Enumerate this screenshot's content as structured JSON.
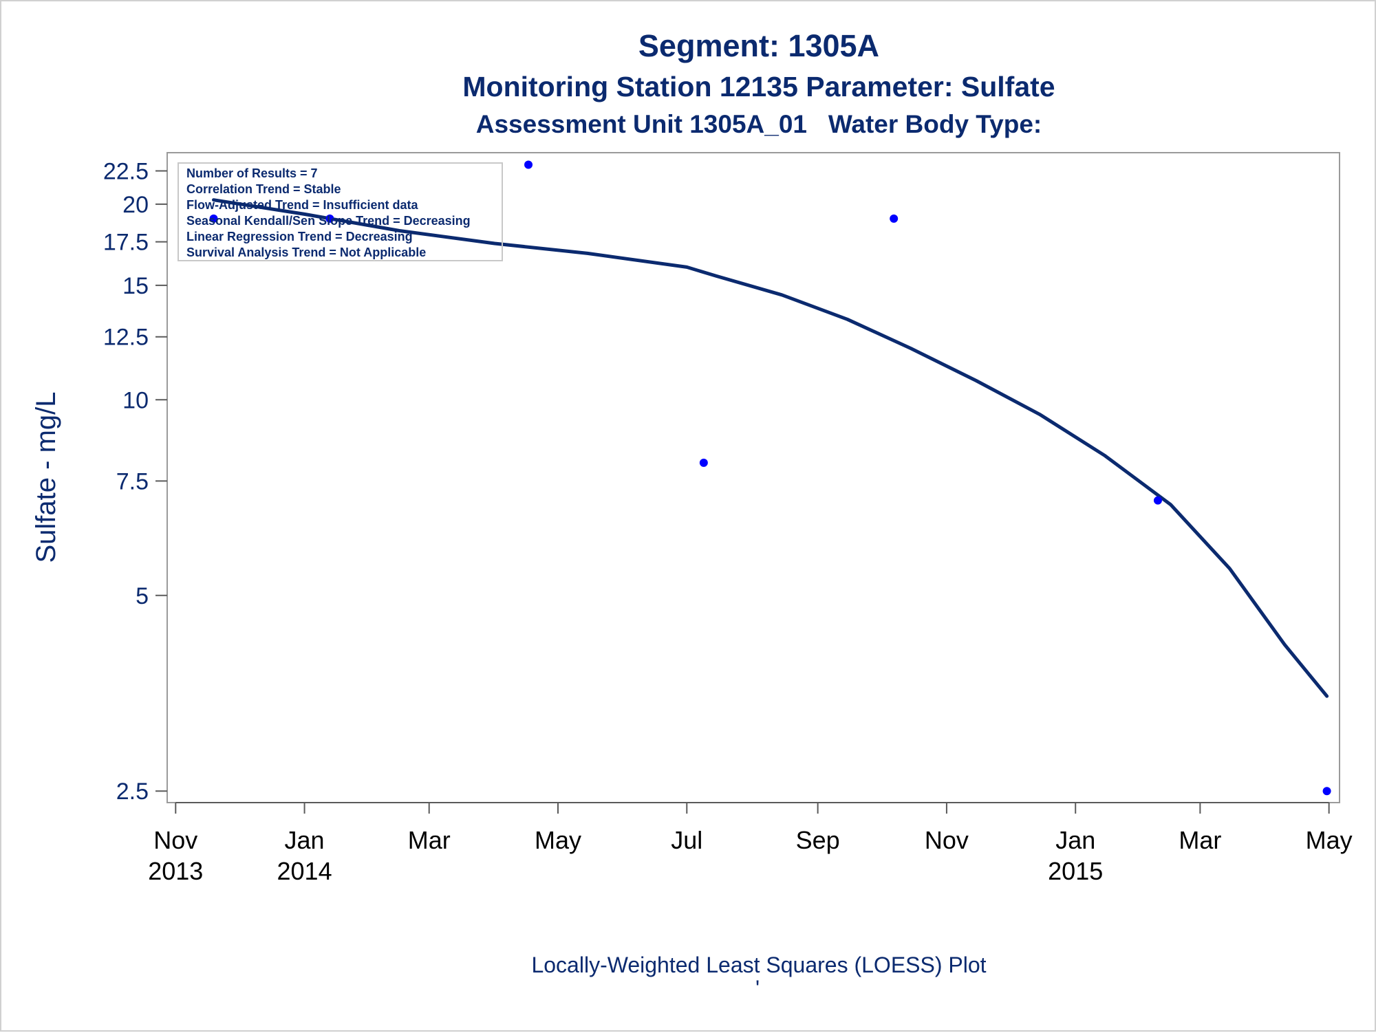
{
  "chart_data": {
    "type": "scatter",
    "title": "Segment: 1305A",
    "subtitle": "Monitoring Station 12135 Parameter: Sulfate",
    "subtitle2": "Assessment Unit 1305A_01   Water Body Type:",
    "xlabel": "",
    "ylabel": "Sulfate - mg/L",
    "footnote": "Locally-Weighted Least Squares (LOESS) Plot",
    "footnote_mark": "'",
    "yscale": "log",
    "ylim": [
      2.4,
      24
    ],
    "xlim": [
      "2013-10-28",
      "2015-05-06"
    ],
    "grid": false,
    "y_ticks": [
      {
        "value": 2.5,
        "label": "2.5"
      },
      {
        "value": 5,
        "label": "5"
      },
      {
        "value": 7.5,
        "label": "7.5"
      },
      {
        "value": 10,
        "label": "10"
      },
      {
        "value": 12.5,
        "label": "12.5"
      },
      {
        "value": 15,
        "label": "15"
      },
      {
        "value": 17.5,
        "label": "17.5"
      },
      {
        "value": 20,
        "label": "20"
      },
      {
        "value": 22.5,
        "label": "22.5"
      }
    ],
    "x_ticks": [
      {
        "date": "2013-11-01",
        "line1": "Nov",
        "line2": "2013"
      },
      {
        "date": "2014-01-01",
        "line1": "Jan",
        "line2": "2014"
      },
      {
        "date": "2014-03-01",
        "line1": "Mar",
        "line2": ""
      },
      {
        "date": "2014-05-01",
        "line1": "May",
        "line2": ""
      },
      {
        "date": "2014-07-01",
        "line1": "Jul",
        "line2": ""
      },
      {
        "date": "2014-09-01",
        "line1": "Sep",
        "line2": ""
      },
      {
        "date": "2014-11-01",
        "line1": "Nov",
        "line2": ""
      },
      {
        "date": "2015-01-01",
        "line1": "Jan",
        "line2": "2015"
      },
      {
        "date": "2015-03-01",
        "line1": "Mar",
        "line2": ""
      },
      {
        "date": "2015-05-01",
        "line1": "May",
        "line2": ""
      }
    ],
    "series": [
      {
        "kind": "points",
        "color": "#0000ff",
        "points": [
          {
            "x": "2013-11-19",
            "y": 19
          },
          {
            "x": "2014-01-13",
            "y": 19
          },
          {
            "x": "2014-04-17",
            "y": 23
          },
          {
            "x": "2014-07-09",
            "y": 8
          },
          {
            "x": "2014-10-07",
            "y": 19
          },
          {
            "x": "2015-02-09",
            "y": 7
          },
          {
            "x": "2015-04-30",
            "y": 2.5
          }
        ]
      },
      {
        "kind": "loess",
        "color": "#0b2a6f",
        "points": [
          {
            "x": "2013-11-19",
            "y": 20.3
          },
          {
            "x": "2014-01-01",
            "y": 19.3
          },
          {
            "x": "2014-02-15",
            "y": 18.2
          },
          {
            "x": "2014-04-01",
            "y": 17.4
          },
          {
            "x": "2014-05-15",
            "y": 16.8
          },
          {
            "x": "2014-07-01",
            "y": 16.0
          },
          {
            "x": "2014-07-15",
            "y": 15.5
          },
          {
            "x": "2014-08-15",
            "y": 14.5
          },
          {
            "x": "2014-09-15",
            "y": 13.3
          },
          {
            "x": "2014-10-15",
            "y": 12.0
          },
          {
            "x": "2014-11-15",
            "y": 10.7
          },
          {
            "x": "2014-12-15",
            "y": 9.5
          },
          {
            "x": "2015-01-15",
            "y": 8.2
          },
          {
            "x": "2015-02-15",
            "y": 6.9
          },
          {
            "x": "2015-03-15",
            "y": 5.5
          },
          {
            "x": "2015-04-10",
            "y": 4.2
          },
          {
            "x": "2015-04-30",
            "y": 3.5
          }
        ]
      }
    ],
    "stats_box": [
      "Number of Results = 7",
      "Correlation Trend = Stable",
      "Flow-Adjusted Trend = Insufficient data",
      "Seasonal Kendall/Sen Slope Trend = Decreasing",
      "Linear Regression Trend = Decreasing",
      "Survival Analysis Trend = Not Applicable"
    ]
  }
}
